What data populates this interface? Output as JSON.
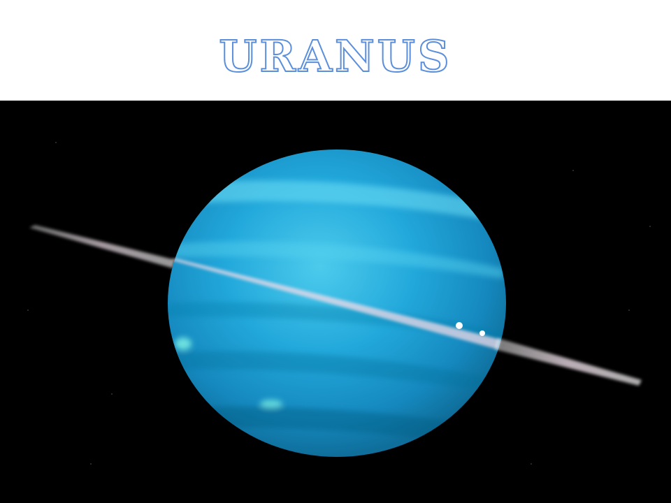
{
  "slide": {
    "title": "URANUS"
  },
  "photo": {
    "subject": "planet-with-rings",
    "colors": {
      "space": "#000000",
      "planet_light": "#3fc4ea",
      "planet_mid": "#1ea4d8",
      "planet_dark": "#0f6e9a",
      "ring": "#f2e6ee",
      "title_outline": "#5b8fdc"
    }
  }
}
